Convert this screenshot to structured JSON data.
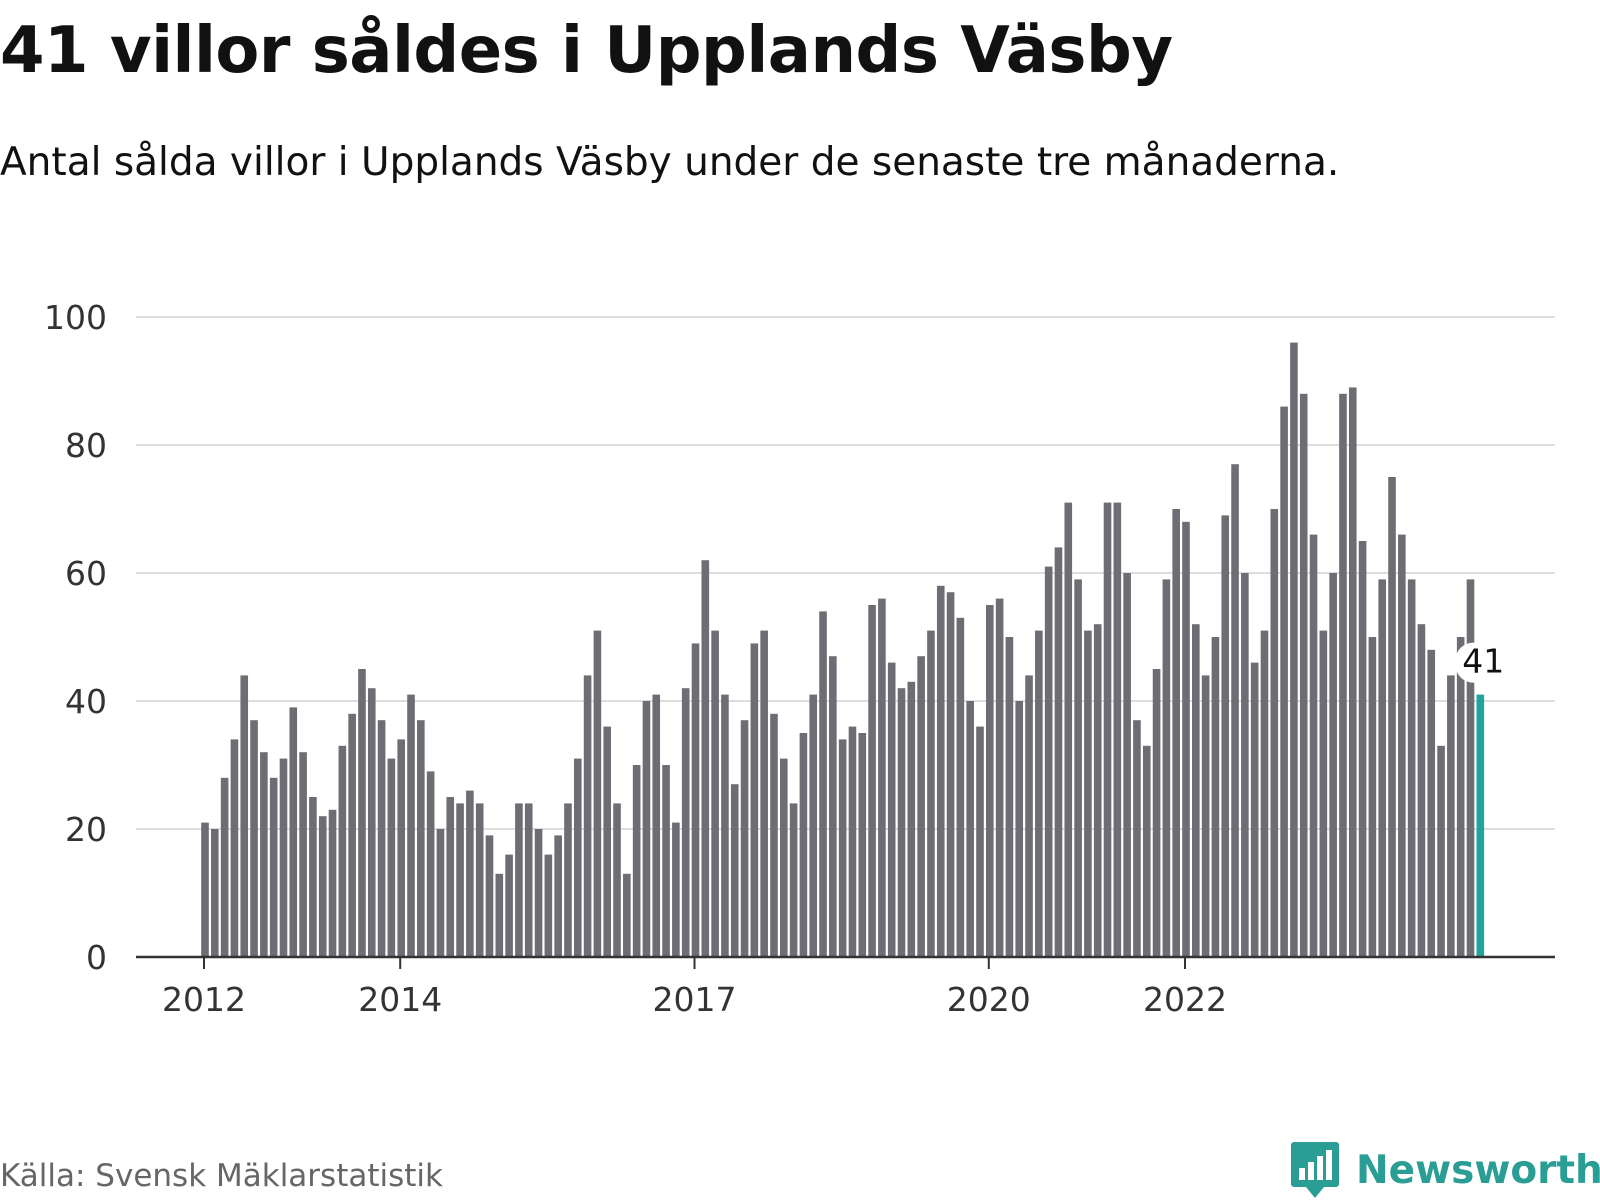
{
  "title": "41 villor såldes i Upplands Väsby",
  "subtitle": "Antal sålda villor i Upplands Väsby under de senaste tre månaderna.",
  "source": "Källa: Svensk Mäklarstatistik",
  "brand": {
    "name": "Newsworthy",
    "icon": "newsworthy-logo-icon",
    "color": "#2a9d94"
  },
  "colors": {
    "bar": "#6d6d73",
    "highlight": "#1fa59a",
    "grid": "#dddddd",
    "axis": "#333333"
  },
  "chart_data": {
    "type": "bar",
    "title": "41 villor såldes i Upplands Väsby",
    "xlabel": "",
    "ylabel": "",
    "ylim": [
      0,
      100
    ],
    "yticks": [
      0,
      20,
      40,
      60,
      80,
      100
    ],
    "grid": true,
    "x_start": "2012-01",
    "x_ticks": [
      {
        "index": 0,
        "label": "2012"
      },
      {
        "index": 20,
        "label": "2014"
      },
      {
        "index": 50,
        "label": "2017"
      },
      {
        "index": 80,
        "label": "2020"
      },
      {
        "index": 100,
        "label": "2022"
      }
    ],
    "values": [
      21,
      20,
      28,
      34,
      44,
      37,
      32,
      28,
      31,
      39,
      32,
      25,
      22,
      23,
      33,
      38,
      45,
      42,
      37,
      31,
      34,
      41,
      37,
      29,
      20,
      25,
      24,
      26,
      24,
      19,
      13,
      16,
      24,
      24,
      20,
      16,
      19,
      24,
      31,
      44,
      51,
      36,
      24,
      13,
      30,
      40,
      41,
      30,
      21,
      42,
      49,
      62,
      51,
      41,
      27,
      37,
      49,
      51,
      38,
      31,
      24,
      35,
      41,
      54,
      47,
      34,
      36,
      35,
      55,
      56,
      46,
      42,
      43,
      47,
      51,
      58,
      57,
      53,
      40,
      36,
      55,
      56,
      50,
      40,
      44,
      51,
      61,
      64,
      71,
      59,
      51,
      52,
      71,
      71,
      60,
      37,
      33,
      45,
      59,
      70,
      68,
      52,
      44,
      50,
      69,
      77,
      60,
      46,
      51,
      70,
      86,
      96,
      88,
      66,
      51,
      60,
      88,
      89,
      65,
      50,
      59,
      75,
      66,
      59,
      52,
      48,
      33,
      44,
      50,
      59,
      41
    ],
    "highlight_last": true,
    "highlight_label": "41"
  }
}
